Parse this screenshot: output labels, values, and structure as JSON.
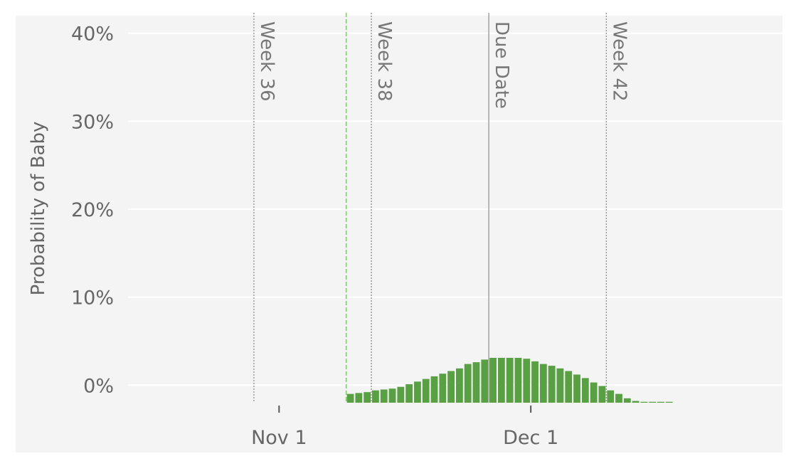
{
  "chart_data": {
    "type": "bar",
    "title": "",
    "xlabel": "",
    "ylabel": "Probability of Baby",
    "ylim": [
      -2,
      42
    ],
    "y_ticks": [
      {
        "value": 0,
        "label": "0%"
      },
      {
        "value": 10,
        "label": "10%"
      },
      {
        "value": 20,
        "label": "20%"
      },
      {
        "value": 30,
        "label": "30%"
      },
      {
        "value": 40,
        "label": "40%"
      }
    ],
    "x_ticks": [
      {
        "date": "2019-11-01",
        "label": "Nov 1"
      },
      {
        "date": "2019-12-01",
        "label": "Dec 1"
      }
    ],
    "x_range": [
      "2019-10-14",
      "2019-12-31"
    ],
    "grid": true,
    "background": "#f4f4f4",
    "bar_color": "#58a043",
    "reference_lines": [
      {
        "date": "2019-10-29",
        "label": "Week 36",
        "style": "dotted",
        "color": "#9a9a9a"
      },
      {
        "date": "2019-11-12",
        "label": "Week 38",
        "style": "dotted",
        "color": "#9a9a9a"
      },
      {
        "date": "2019-11-26",
        "label": "Due Date",
        "style": "solid",
        "color": "#a8a8a8"
      },
      {
        "date": "2019-12-10",
        "label": "Week 42",
        "style": "dotted",
        "color": "#9a9a9a"
      },
      {
        "date": "2019-11-09",
        "label": "",
        "style": "dashed",
        "color": "#7cc86a"
      }
    ],
    "series": [
      {
        "x": [
          "2019-11-09",
          "2019-11-10",
          "2019-11-11",
          "2019-11-12",
          "2019-11-13",
          "2019-11-14",
          "2019-11-15",
          "2019-11-16",
          "2019-11-17",
          "2019-11-18",
          "2019-11-19",
          "2019-11-20",
          "2019-11-21",
          "2019-11-22",
          "2019-11-23",
          "2019-11-24",
          "2019-11-25",
          "2019-11-26",
          "2019-11-27",
          "2019-11-28",
          "2019-11-29",
          "2019-11-30",
          "2019-12-01",
          "2019-12-02",
          "2019-12-03",
          "2019-12-04",
          "2019-12-05",
          "2019-12-06",
          "2019-12-07",
          "2019-12-08",
          "2019-12-09",
          "2019-12-10",
          "2019-12-11",
          "2019-12-12",
          "2019-12-13",
          "2019-12-14",
          "2019-12-15",
          "2019-12-16",
          "2019-12-17"
        ],
        "values": [
          -1.0,
          -0.9,
          -0.8,
          -0.6,
          -0.5,
          -0.4,
          -0.2,
          0.1,
          0.4,
          0.7,
          1.0,
          1.3,
          1.6,
          1.9,
          2.4,
          2.6,
          2.9,
          3.1,
          3.1,
          3.1,
          3.1,
          3.0,
          2.7,
          2.4,
          2.2,
          1.9,
          1.6,
          1.2,
          0.8,
          0.3,
          -0.1,
          -0.6,
          -1.0,
          -1.5,
          -1.8,
          -1.9,
          -1.9,
          -1.9,
          -1.9
        ]
      }
    ]
  }
}
